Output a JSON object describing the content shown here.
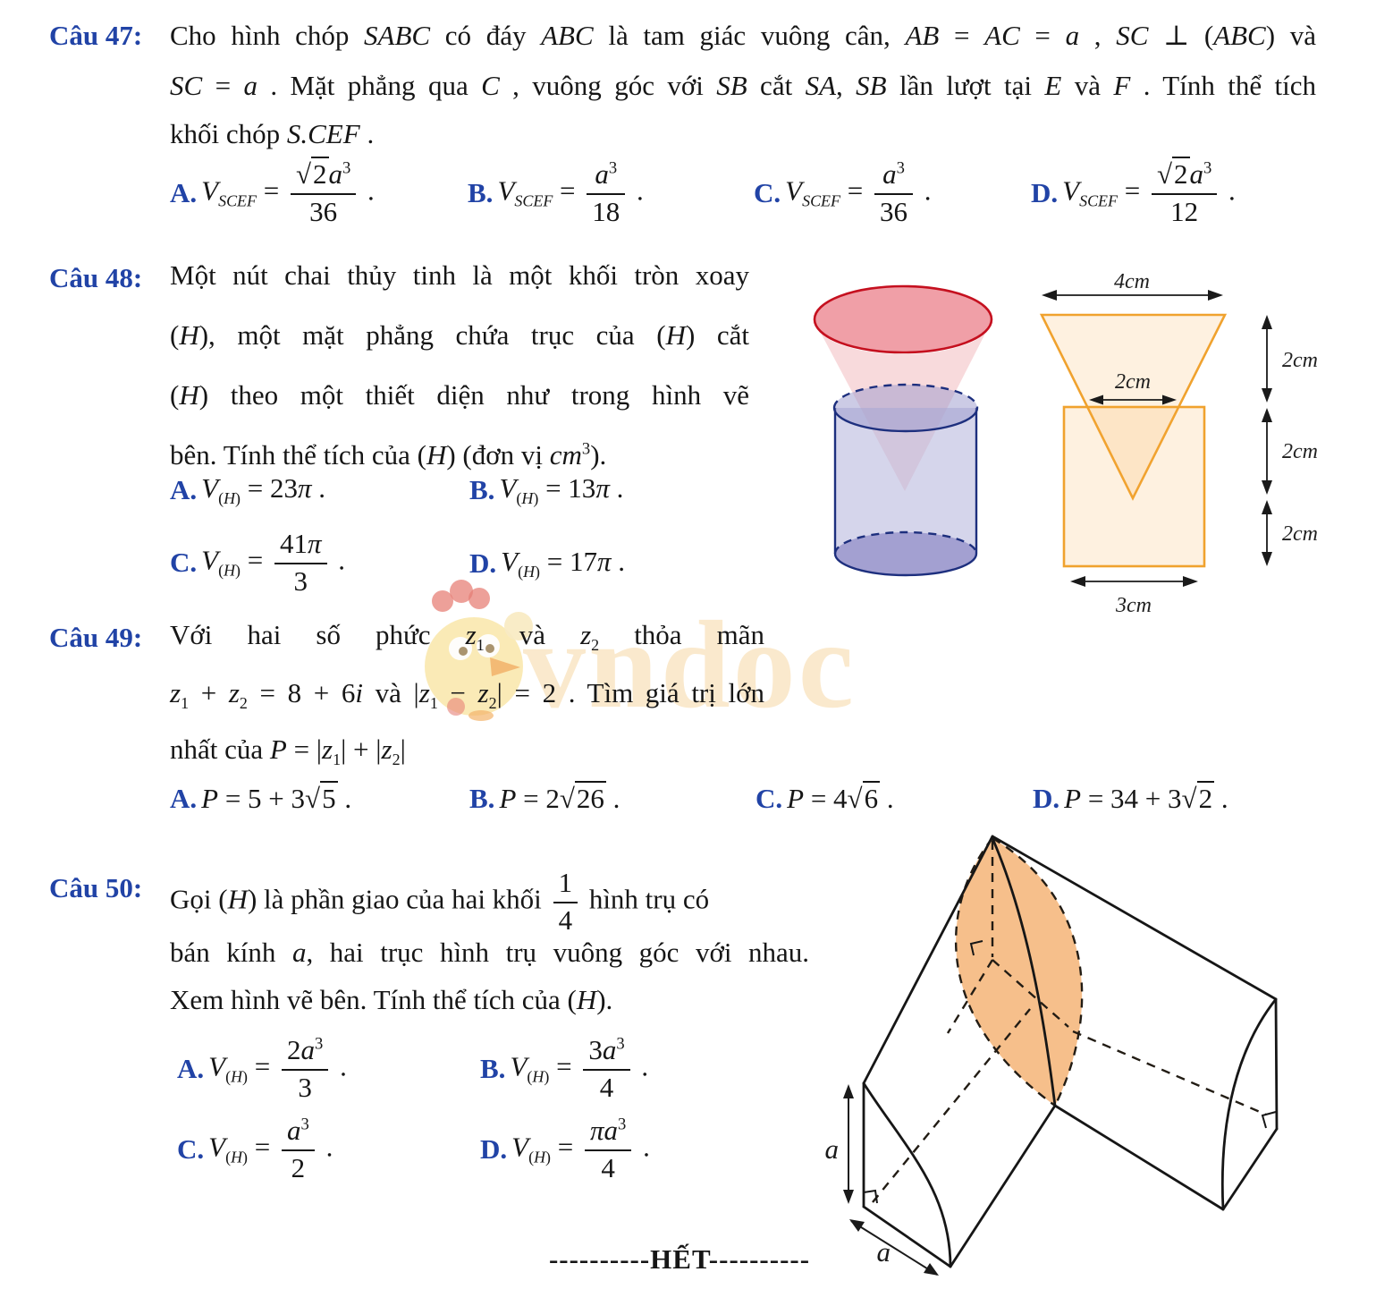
{
  "colors": {
    "accent_blue": "#2143a6",
    "diagram_orange": "#f0a22e",
    "cone_red": "#c5101f",
    "cylinder_navy": "#1d2f7e",
    "watermark_cream": "#f8ddb0"
  },
  "watermark": {
    "text": "vndoc"
  },
  "end_marker": "----------HẾT----------",
  "questions": [
    {
      "label": "Câu 47:",
      "lines": [
        "Cho hình chóp <i>SABC</i> có đáy <i>ABC</i> là tam giác vuông cân, <i>AB</i> = <i>AC</i> = <i>a</i> , <i>SC</i> ⊥ (<i>ABC</i>) và",
        "<i>SC</i> = <i>a</i> . Mặt phẳng qua <i>C</i> , vuông góc với <i>SB</i> cắt <i>SA</i>, <i>SB</i> lần lượt tại <i>E</i> và <i>F</i> . Tính thể tích",
        "khối chóp <i>S.CEF</i> ."
      ],
      "options": [
        {
          "label": "A.",
          "formula": "<i>V</i><sub><i>SCEF</i></sub> = <span class=fr><span class=nu>√<span class=rad>2</span><i>a</i><sup>3</sup></span><span class=de>36</span></span> ."
        },
        {
          "label": "B.",
          "formula": "<i>V</i><sub><i>SCEF</i></sub> = <span class=fr><span class=nu><i>a</i><sup>3</sup></span><span class=de>18</span></span> ."
        },
        {
          "label": "C.",
          "formula": "<i>V</i><sub><i>SCEF</i></sub> = <span class=fr><span class=nu><i>a</i><sup>3</sup></span><span class=de>36</span></span> ."
        },
        {
          "label": "D.",
          "formula": "<i>V</i><sub><i>SCEF</i></sub> = <span class=fr><span class=nu>√<span class=rad>2</span><i>a</i><sup>3</sup></span><span class=de>12</span></span> ."
        }
      ]
    },
    {
      "label": "Câu 48:",
      "lines": [
        "Một nút chai thủy tinh là một khối tròn xoay",
        "(<i>H</i>), một mặt phẳng chứa trục của (<i>H</i>) cắt",
        "(<i>H</i>) theo một thiết diện như trong hình vẽ",
        "bên. Tính thể tích của (<i>H</i>) (đơn vị <i>cm</i><sup>3</sup>)."
      ],
      "options": [
        {
          "label": "A.",
          "formula": "<i>V</i><sub>(<i>H</i>)</sub> = 23<i>π</i> ."
        },
        {
          "label": "B.",
          "formula": "<i>V</i><sub>(<i>H</i>)</sub> = 13<i>π</i> ."
        },
        {
          "label": "C.",
          "formula": "<i>V</i><sub>(<i>H</i>)</sub> = <span class=fr><span class=nu>41<i>π</i></span><span class=de>3</span></span> ."
        },
        {
          "label": "D.",
          "formula": "<i>V</i><sub>(<i>H</i>)</sub> = 17<i>π</i> ."
        }
      ]
    },
    {
      "label": "Câu 49:",
      "lines": [
        "Với hai số phức <i>z</i><sub>1</sub> và <i>z</i><sub>2</sub> thỏa mãn",
        "<i>z</i><sub>1</sub> + <i>z</i><sub>2</sub> = 8 + 6<i>i</i> và |<i>z</i><sub>1</sub> − <i>z</i><sub>2</sub>| = 2 . Tìm giá trị lớn",
        "nhất của <i>P</i> = |<i>z</i><sub>1</sub>| + |<i>z</i><sub>2</sub>|"
      ],
      "options": [
        {
          "label": "A.",
          "formula": "<i>P</i> = 5 + 3√<span class=rad>5</span> ."
        },
        {
          "label": "B.",
          "formula": "<i>P</i> = 2√<span class=rad>26</span> ."
        },
        {
          "label": "C.",
          "formula": "<i>P</i> = 4√<span class=rad>6</span> ."
        },
        {
          "label": "D.",
          "formula": "<i>P</i> = 34 + 3√<span class=rad>2</span> ."
        }
      ]
    },
    {
      "label": "Câu 50:",
      "lines": [
        "Gọi (<i>H</i>) là phần giao của hai khối <span class=fr><span class=nu>1</span><span class=de>4</span></span> hình trụ có",
        "bán kính <i>a</i>, hai trục hình trụ vuông góc với nhau.",
        "Xem hình vẽ bên. Tính thể tích của (<i>H</i>)."
      ],
      "options": [
        {
          "label": "A.",
          "formula": "<i>V</i><sub>(<i>H</i>)</sub> = <span class=fr><span class=nu>2<i>a</i><sup>3</sup></span><span class=de>3</span></span> ."
        },
        {
          "label": "B.",
          "formula": "<i>V</i><sub>(<i>H</i>)</sub> = <span class=fr><span class=nu>3<i>a</i><sup>3</sup></span><span class=de>4</span></span> ."
        },
        {
          "label": "C.",
          "formula": "<i>V</i><sub>(<i>H</i>)</sub> = <span class=fr><span class=nu><i>a</i><sup>3</sup></span><span class=de>2</span></span> ."
        },
        {
          "label": "D.",
          "formula": "<i>V</i><sub>(<i>H</i>)</sub> = <span class=fr><span class=nu><i>πa</i><sup>3</sup></span><span class=de>4</span></span> ."
        }
      ]
    }
  ],
  "fig48": {
    "dim_top": "4cm",
    "dim_inner": "2cm",
    "dim_bottom": "3cm",
    "dim_right_1": "2cm",
    "dim_right_2": "2cm",
    "dim_right_3": "2cm"
  },
  "fig50": {
    "dim_height": "a",
    "dim_depth": "a"
  }
}
